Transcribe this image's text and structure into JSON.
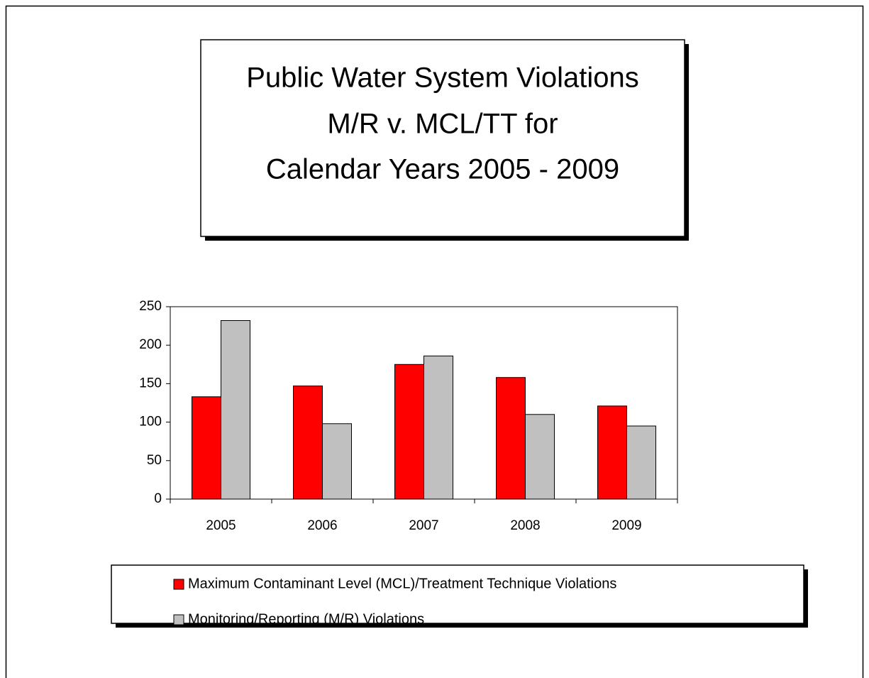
{
  "chart_data": {
    "type": "bar",
    "title": [
      "Public Water System Violations",
      "M/R v. MCL/TT for",
      "Calendar Years 2005 - 2009"
    ],
    "categories": [
      "2005",
      "2006",
      "2007",
      "2008",
      "2009"
    ],
    "series": [
      {
        "name": "Maximum Contaminant Level (MCL)/Treatment Technique Violations",
        "color": "#ff0000",
        "values": [
          133,
          147,
          175,
          158,
          121
        ]
      },
      {
        "name": "Monitoring/Reporting (M/R) Violations",
        "color": "#c0c0c0",
        "values": [
          232,
          98,
          186,
          110,
          95
        ]
      }
    ],
    "ylim": [
      0,
      250
    ],
    "yticks": [
      0,
      50,
      100,
      150,
      200,
      250
    ],
    "grid": false,
    "legend": "bottom"
  }
}
